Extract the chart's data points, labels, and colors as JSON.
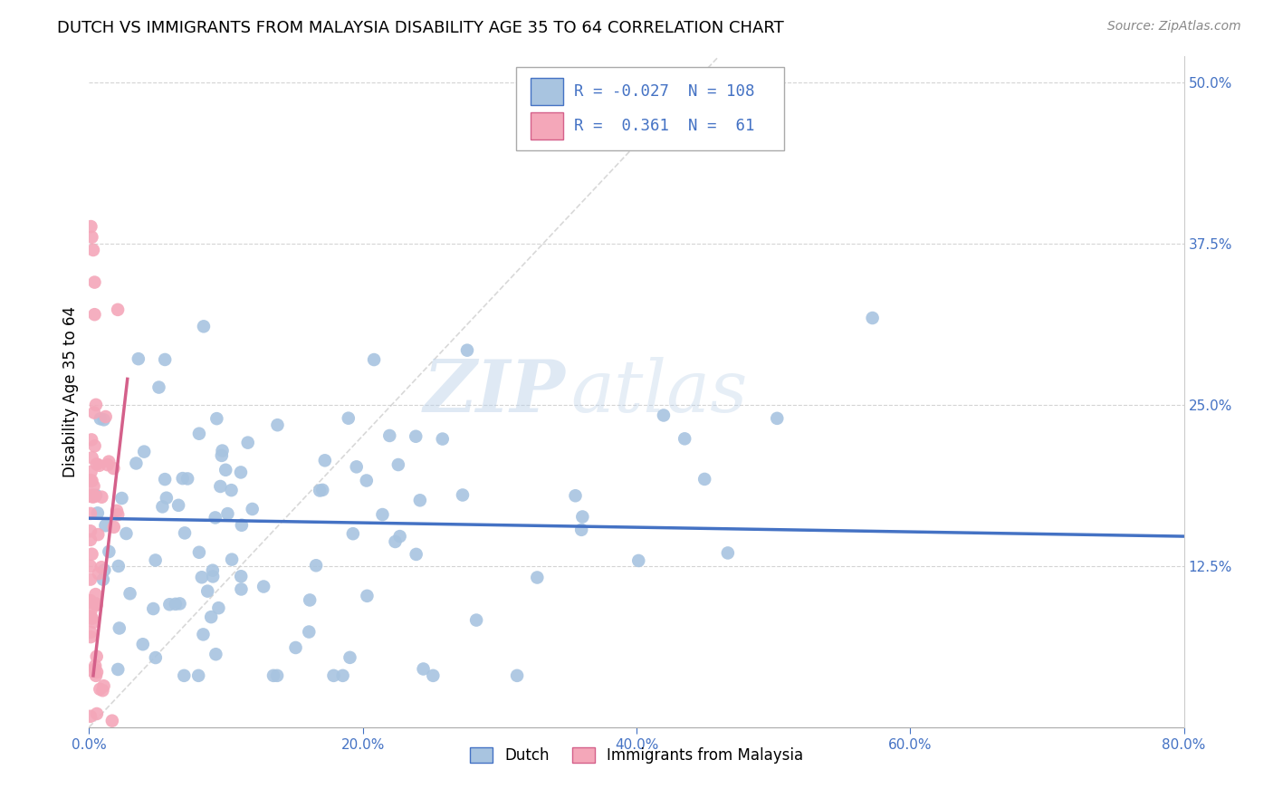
{
  "title": "DUTCH VS IMMIGRANTS FROM MALAYSIA DISABILITY AGE 35 TO 64 CORRELATION CHART",
  "source": "Source: ZipAtlas.com",
  "ylabel": "Disability Age 35 to 64",
  "xmin": 0.0,
  "xmax": 0.8,
  "ymin": 0.0,
  "ymax": 0.52,
  "dutch_color": "#a8c4e0",
  "dutch_color_dark": "#4472c4",
  "malaysia_color": "#f4a7b9",
  "malaysia_color_dark": "#d4608a",
  "dutch_R": -0.027,
  "dutch_N": 108,
  "malaysia_R": 0.361,
  "malaysia_N": 61,
  "watermark_zip": "ZIP",
  "watermark_atlas": "atlas",
  "background_color": "#ffffff",
  "grid_color": "#d0d0d0",
  "diag_color": "#c8c8c8",
  "ylabel_tick_vals": [
    0.125,
    0.25,
    0.375,
    0.5
  ],
  "ylabel_ticks": [
    "12.5%",
    "25.0%",
    "37.5%",
    "50.0%"
  ],
  "xlabel_tick_vals": [
    0.0,
    0.2,
    0.4,
    0.6,
    0.8
  ],
  "xlabel_ticks": [
    "0.0%",
    "20.0%",
    "40.0%",
    "60.0%",
    "80.0%"
  ],
  "dutch_line_x": [
    0.0,
    0.8
  ],
  "dutch_line_y": [
    0.162,
    0.148
  ],
  "malaysia_line_x": [
    0.003,
    0.028
  ],
  "malaysia_line_y": [
    0.04,
    0.27
  ]
}
